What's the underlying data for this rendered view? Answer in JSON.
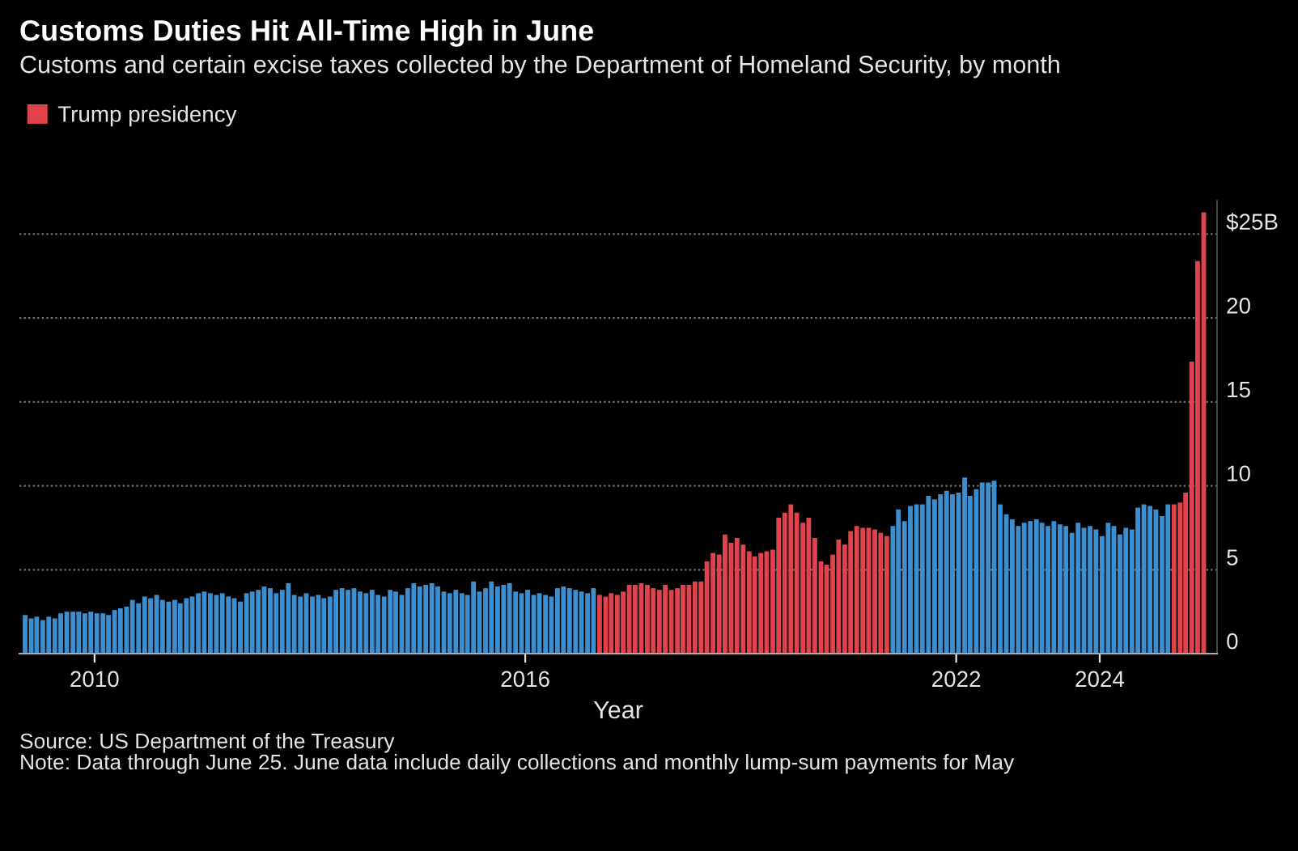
{
  "chart_data": {
    "type": "bar",
    "title": "Customs Duties Hit All-Time High in June",
    "subtitle": "Customs and certain excise taxes collected by the Department of Homeland Security, by month",
    "xlabel": "Year",
    "series": [
      {
        "color": "#3b8fd0",
        "x": [
          "2009-01",
          "2009-02",
          "2009-03",
          "2009-04",
          "2009-05",
          "2009-06",
          "2009-07",
          "2009-08",
          "2009-09",
          "2009-10",
          "2009-11",
          "2009-12",
          "2010-01",
          "2010-02",
          "2010-03",
          "2010-04",
          "2010-05",
          "2010-06",
          "2010-07",
          "2010-08",
          "2010-09",
          "2010-10",
          "2010-11",
          "2010-12",
          "2011-01",
          "2011-02",
          "2011-03",
          "2011-04",
          "2011-05",
          "2011-06",
          "2011-07",
          "2011-08",
          "2011-09",
          "2011-10",
          "2011-11",
          "2011-12",
          "2012-01",
          "2012-02",
          "2012-03",
          "2012-04",
          "2012-05",
          "2012-06",
          "2012-07",
          "2012-08",
          "2012-09",
          "2012-10",
          "2012-11",
          "2012-12",
          "2013-01",
          "2013-02",
          "2013-03",
          "2013-04",
          "2013-05",
          "2013-06",
          "2013-07",
          "2013-08",
          "2013-09",
          "2013-10",
          "2013-11",
          "2013-12",
          "2014-01",
          "2014-02",
          "2014-03",
          "2014-04",
          "2014-05",
          "2014-06",
          "2014-07",
          "2014-08",
          "2014-09",
          "2014-10",
          "2014-11",
          "2014-12",
          "2015-01",
          "2015-02",
          "2015-03",
          "2015-04",
          "2015-05",
          "2015-06",
          "2015-07",
          "2015-08",
          "2015-09",
          "2015-10",
          "2015-11",
          "2015-12",
          "2016-01",
          "2016-02",
          "2016-03",
          "2016-04",
          "2016-05",
          "2016-06",
          "2016-07",
          "2016-08",
          "2016-09",
          "2016-10",
          "2016-11",
          "2016-12",
          "2021-02",
          "2021-03",
          "2021-04",
          "2021-05",
          "2021-06",
          "2021-07",
          "2021-08",
          "2021-09",
          "2021-10",
          "2021-11",
          "2021-12",
          "2022-01",
          "2022-02",
          "2022-03",
          "2022-04",
          "2022-05",
          "2022-06",
          "2022-07",
          "2022-08",
          "2022-09",
          "2022-10",
          "2022-11",
          "2022-12",
          "2023-01",
          "2023-02",
          "2023-03",
          "2023-04",
          "2023-05",
          "2023-06",
          "2023-07",
          "2023-08",
          "2023-09",
          "2023-10",
          "2023-11",
          "2023-12",
          "2024-01",
          "2024-02",
          "2024-03",
          "2024-04",
          "2024-05",
          "2024-06",
          "2024-07",
          "2024-08",
          "2024-09",
          "2024-10",
          "2024-11",
          "2024-12"
        ],
        "values": [
          2.3,
          2.1,
          2.2,
          2.0,
          2.2,
          2.1,
          2.4,
          2.5,
          2.5,
          2.5,
          2.4,
          2.5,
          2.4,
          2.4,
          2.3,
          2.6,
          2.7,
          2.8,
          3.2,
          3.0,
          3.4,
          3.3,
          3.5,
          3.2,
          3.1,
          3.2,
          3.0,
          3.3,
          3.4,
          3.6,
          3.7,
          3.6,
          3.5,
          3.6,
          3.4,
          3.3,
          3.1,
          3.6,
          3.7,
          3.8,
          4.0,
          3.9,
          3.6,
          3.8,
          4.2,
          3.5,
          3.4,
          3.6,
          3.4,
          3.5,
          3.3,
          3.4,
          3.8,
          3.9,
          3.8,
          3.9,
          3.7,
          3.6,
          3.8,
          3.5,
          3.4,
          3.8,
          3.7,
          3.5,
          3.9,
          4.2,
          4.0,
          4.1,
          4.2,
          4.0,
          3.7,
          3.6,
          3.8,
          3.6,
          3.5,
          4.3,
          3.7,
          3.9,
          4.3,
          4.0,
          4.1,
          4.2,
          3.7,
          3.6,
          3.8,
          3.5,
          3.6,
          3.5,
          3.4,
          3.9,
          4.0,
          3.9,
          3.8,
          3.7,
          3.6,
          3.9,
          7.6,
          8.6,
          7.9,
          8.8,
          8.9,
          8.9,
          9.4,
          9.2,
          9.5,
          9.7,
          9.5,
          9.6,
          10.5,
          9.4,
          9.8,
          10.2,
          10.2,
          10.3,
          8.9,
          8.3,
          8.0,
          7.6,
          7.8,
          7.9,
          8.0,
          7.8,
          7.6,
          7.9,
          7.7,
          7.6,
          7.2,
          7.8,
          7.5,
          7.6,
          7.4,
          7.0,
          7.8,
          7.6,
          7.1,
          7.5,
          7.4,
          8.7,
          8.9,
          8.8,
          8.6,
          8.2,
          8.9
        ]
      },
      {
        "name": "Trump presidency",
        "color": "#e0434c",
        "x": [
          "2017-01",
          "2017-02",
          "2017-03",
          "2017-04",
          "2017-05",
          "2017-06",
          "2017-07",
          "2017-08",
          "2017-09",
          "2017-10",
          "2017-11",
          "2017-12",
          "2018-01",
          "2018-02",
          "2018-03",
          "2018-04",
          "2018-05",
          "2018-06",
          "2018-07",
          "2018-08",
          "2018-09",
          "2018-10",
          "2018-11",
          "2018-12",
          "2019-01",
          "2019-02",
          "2019-03",
          "2019-04",
          "2019-05",
          "2019-06",
          "2019-07",
          "2019-08",
          "2019-09",
          "2019-10",
          "2019-11",
          "2019-12",
          "2020-01",
          "2020-02",
          "2020-03",
          "2020-04",
          "2020-05",
          "2020-06",
          "2020-07",
          "2020-08",
          "2020-09",
          "2020-10",
          "2020-11",
          "2020-12",
          "2021-01",
          "2025-01",
          "2025-02",
          "2025-03",
          "2025-04",
          "2025-05",
          "2025-06"
        ],
        "values": [
          3.5,
          3.4,
          3.6,
          3.5,
          3.7,
          4.1,
          4.1,
          4.2,
          4.1,
          3.9,
          3.8,
          4.1,
          3.8,
          3.9,
          4.1,
          4.1,
          4.3,
          4.3,
          5.5,
          6.0,
          5.9,
          7.1,
          6.6,
          6.9,
          6.5,
          6.1,
          5.8,
          6.0,
          6.1,
          6.2,
          8.1,
          8.4,
          8.9,
          8.4,
          7.8,
          8.1,
          6.9,
          5.5,
          5.3,
          5.9,
          6.8,
          6.5,
          7.3,
          7.6,
          7.5,
          7.5,
          7.4,
          7.2,
          7.0,
          8.9,
          9.0,
          9.6,
          17.4,
          23.4,
          26.3
        ]
      }
    ],
    "xlim": [
      "2008-12-15",
      "2025-08-20"
    ],
    "xticks": [
      {
        "value": "2010-01-01",
        "label": "2010"
      },
      {
        "value": "2016-01-01",
        "label": "2016"
      },
      {
        "value": "2022-01-01",
        "label": "2022"
      },
      {
        "value": "2024-01-01",
        "label": "2024"
      }
    ],
    "ylim": [
      0,
      27
    ],
    "yticks": [
      0,
      5,
      10,
      15,
      20,
      {
        "value": 25,
        "label": "$25B"
      }
    ],
    "grid": "y",
    "legend": "top left",
    "annotations": [
      "Source: US Department of the Treasury",
      "Note: Data through June 25. June data include daily collections and monthly lump-sum payments for May"
    ]
  }
}
